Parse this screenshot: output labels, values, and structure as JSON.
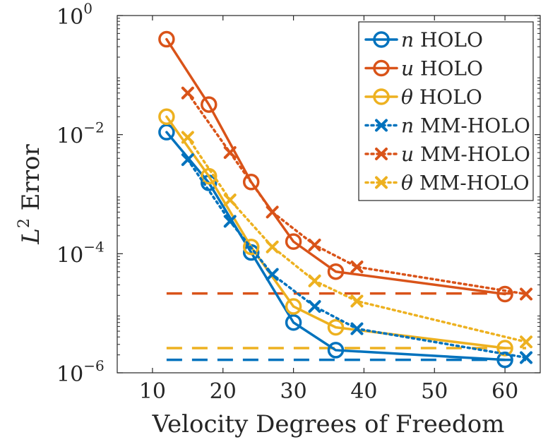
{
  "chart_data": {
    "type": "line",
    "xlabel": "Velocity Degrees of Freedom",
    "ylabel": "L² Error",
    "ylabel_base": "L",
    "ylabel_sup": "2",
    "ylabel_rest": " Error",
    "xlim": [
      5,
      65
    ],
    "ylim": [
      1e-06,
      1
    ],
    "yscale": "log",
    "x_ticks": [
      10,
      20,
      30,
      40,
      50,
      60
    ],
    "y_ticks": [
      {
        "value": 1e-06,
        "base": "10",
        "exp": "−6"
      },
      {
        "value": 0.0001,
        "base": "10",
        "exp": "−4"
      },
      {
        "value": 0.01,
        "base": "10",
        "exp": "−2"
      },
      {
        "value": 1,
        "base": "10",
        "exp": "0"
      }
    ],
    "colors": {
      "n": "#0072bd",
      "u": "#d95319",
      "theta": "#edb120"
    },
    "series": [
      {
        "name": "n HOLO",
        "var": "n",
        "label": "HOLO",
        "color": "#0072bd",
        "style": "solid",
        "marker": "circle",
        "x": [
          12,
          18,
          24,
          30,
          36,
          60
        ],
        "values": [
          0.011,
          0.00155,
          0.000105,
          7e-06,
          2.4e-06,
          1.65e-06
        ]
      },
      {
        "name": "u HOLO",
        "var": "u",
        "label": "HOLO",
        "color": "#d95319",
        "style": "solid",
        "marker": "circle",
        "x": [
          12,
          18,
          24,
          30,
          36,
          60
        ],
        "values": [
          0.4,
          0.032,
          0.0016,
          0.00016,
          5e-05,
          2.1e-05
        ]
      },
      {
        "name": "θ HOLO",
        "var": "θ",
        "label": "HOLO",
        "color": "#edb120",
        "style": "solid",
        "marker": "circle",
        "x": [
          12,
          18,
          24,
          30,
          36,
          60
        ],
        "values": [
          0.02,
          0.002,
          0.00013,
          1.3e-05,
          5.8e-06,
          2.6e-06
        ]
      },
      {
        "name": "n MM-HOLO",
        "var": "n",
        "label": "MM-HOLO",
        "color": "#0072bd",
        "style": "dotted",
        "marker": "x",
        "x": [
          15,
          21,
          27,
          33,
          39,
          63
        ],
        "values": [
          0.0038,
          0.00035,
          4.5e-05,
          1.3e-05,
          5.5e-06,
          1.8e-06
        ]
      },
      {
        "name": "u MM-HOLO",
        "var": "u",
        "label": "MM-HOLO",
        "color": "#d95319",
        "style": "dotted",
        "marker": "x",
        "x": [
          15,
          21,
          27,
          33,
          39,
          63
        ],
        "values": [
          0.05,
          0.005,
          0.0005,
          0.00014,
          6e-05,
          2.1e-05
        ]
      },
      {
        "name": "θ MM-HOLO",
        "var": "θ",
        "label": "MM-HOLO",
        "color": "#edb120",
        "style": "dotted",
        "marker": "x",
        "x": [
          15,
          21,
          27,
          33,
          39,
          63
        ],
        "values": [
          0.009,
          0.0008,
          0.00013,
          3.5e-05,
          1.6e-05,
          3.3e-06
        ]
      }
    ],
    "reference_lines": [
      {
        "var": "u",
        "color": "#d95319",
        "value": 2.15e-05,
        "x_range": [
          12,
          63
        ]
      },
      {
        "var": "θ",
        "color": "#edb120",
        "value": 2.6e-06,
        "x_range": [
          12,
          63
        ]
      },
      {
        "var": "n",
        "color": "#0072bd",
        "value": 1.65e-06,
        "x_range": [
          12,
          63
        ]
      }
    ],
    "legend_position": "top-right"
  }
}
